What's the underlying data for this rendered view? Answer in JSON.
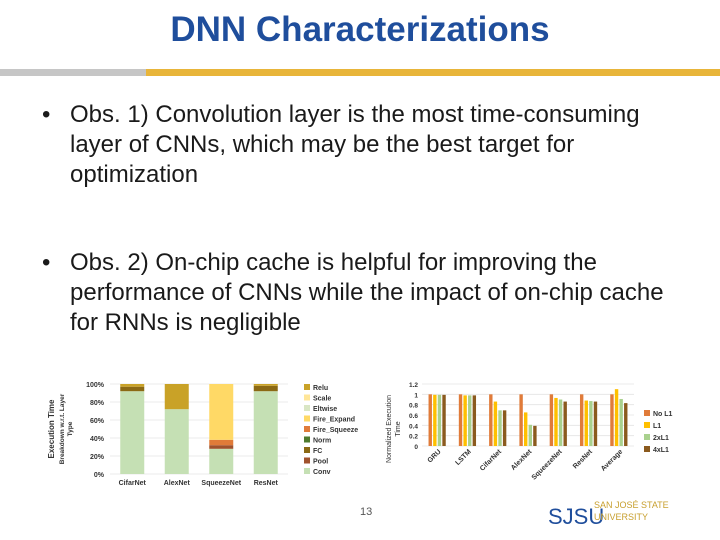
{
  "slide": {
    "title": "DNN Characterizations",
    "bullets": [
      {
        "marker": "•",
        "text": "Obs. 1) Convolution layer is the most time-consuming layer of CNNs, which may be the best target for optimization"
      },
      {
        "marker": "•",
        "text": "Obs. 2) On-chip cache is helpful for improving the performance of CNNs while the impact of on-chip cache for RNNs is negligible"
      }
    ],
    "page_number": "13",
    "logo": {
      "main": "SJSU",
      "line1": "SAN JOSÉ STATE",
      "line2": "UNIVERSITY"
    },
    "colors": {
      "title": "#1f4e9c",
      "rule_gold": "#e8b53a",
      "rule_grey": "#c6c6c6"
    }
  },
  "chart_data": [
    {
      "type": "bar",
      "stacked": true,
      "ylabel": "Execution Time Breakdown w.r.t. Layer Type",
      "ytick_labels": [
        "0%",
        "20%",
        "40%",
        "60%",
        "80%",
        "100%"
      ],
      "ylim": [
        0,
        100
      ],
      "categories": [
        "CifarNet",
        "AlexNet",
        "SqueezeNet",
        "ResNet"
      ],
      "legend_position": "right",
      "series": [
        {
          "name": "Conv",
          "color": "#c5e0b4",
          "values": [
            92,
            72,
            28,
            92
          ]
        },
        {
          "name": "Pool",
          "color": "#a0522d",
          "values": [
            0,
            0,
            4,
            0
          ]
        },
        {
          "name": "FC",
          "color": "#8b6914",
          "values": [
            5,
            0,
            0,
            6
          ]
        },
        {
          "name": "Norm",
          "color": "#4e7a2e",
          "values": [
            0,
            0,
            0,
            0
          ]
        },
        {
          "name": "Fire_Squeeze",
          "color": "#e07b39",
          "values": [
            0,
            0,
            6,
            0
          ]
        },
        {
          "name": "Fire_Expand",
          "color": "#ffd966",
          "values": [
            0,
            0,
            62,
            0
          ]
        },
        {
          "name": "Eltwise",
          "color": "#d9e6c4",
          "values": [
            0,
            0,
            0,
            0
          ]
        },
        {
          "name": "Scale",
          "color": "#ffe699",
          "values": [
            0,
            0,
            0,
            0
          ]
        },
        {
          "name": "Relu",
          "color": "#c9a227",
          "values": [
            3,
            28,
            0,
            2
          ]
        }
      ],
      "legend_order": [
        "Relu",
        "Scale",
        "Eltwise",
        "Fire_Expand",
        "Fire_Squeeze",
        "Norm",
        "FC",
        "Pool",
        "Conv"
      ]
    },
    {
      "type": "bar",
      "ylabel": "Normalized Execution Time",
      "ytick_labels": [
        "0",
        "0.2",
        "0.4",
        "0.6",
        "0.8",
        "1",
        "1.2"
      ],
      "ylim": [
        0,
        1.2
      ],
      "categories": [
        "GRU",
        "LSTM",
        "CifarNet",
        "AlexNet",
        "SqueezeNet",
        "ResNet",
        "Average"
      ],
      "legend_position": "right",
      "series": [
        {
          "name": "No L1",
          "color": "#e07b39",
          "values": [
            1.0,
            1.0,
            1.0,
            1.0,
            1.0,
            1.0,
            1.0
          ]
        },
        {
          "name": "L1",
          "color": "#ffc000",
          "values": [
            0.99,
            0.98,
            0.86,
            0.65,
            0.93,
            0.88,
            1.1
          ]
        },
        {
          "name": "2xL1",
          "color": "#a9d18e",
          "values": [
            0.99,
            0.98,
            0.69,
            0.41,
            0.9,
            0.87,
            0.91
          ]
        },
        {
          "name": "4xL1",
          "color": "#8b5a1e",
          "values": [
            0.99,
            0.98,
            0.69,
            0.39,
            0.86,
            0.86,
            0.83
          ]
        }
      ]
    }
  ]
}
